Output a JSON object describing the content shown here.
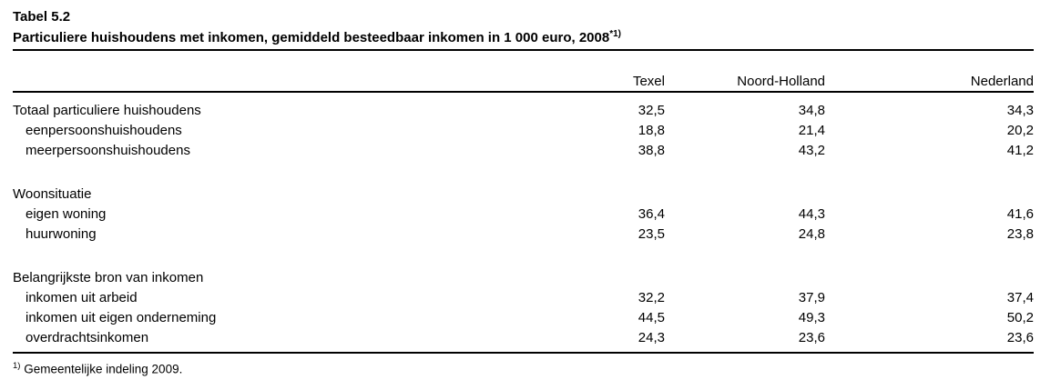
{
  "document": {
    "table_number": "Tabel 5.2",
    "title": "Particuliere huishoudens met inkomen, gemiddeld besteedbaar inkomen in 1 000 euro, 2008",
    "title_superscript": "*1)",
    "footnote_marker": "1)",
    "footnote_text": "Gemeentelijke indeling 2009."
  },
  "table": {
    "columns": [
      "Texel",
      "Noord-Holland",
      "Nederland"
    ],
    "rows": [
      {
        "type": "data",
        "label": "Totaal particuliere huishoudens",
        "indent": false,
        "values": [
          "32,5",
          "34,8",
          "34,3"
        ]
      },
      {
        "type": "data",
        "label": "eenpersoonshuishoudens",
        "indent": true,
        "values": [
          "18,8",
          "21,4",
          "20,2"
        ]
      },
      {
        "type": "data",
        "label": "meerpersoonshuishoudens",
        "indent": true,
        "values": [
          "38,8",
          "43,2",
          "41,2"
        ]
      },
      {
        "type": "spacer"
      },
      {
        "type": "section",
        "label": "Woonsituatie",
        "indent": false
      },
      {
        "type": "data",
        "label": "eigen woning",
        "indent": true,
        "values": [
          "36,4",
          "44,3",
          "41,6"
        ]
      },
      {
        "type": "data",
        "label": "huurwoning",
        "indent": true,
        "values": [
          "23,5",
          "24,8",
          "23,8"
        ]
      },
      {
        "type": "spacer"
      },
      {
        "type": "section",
        "label": "Belangrijkste bron van inkomen",
        "indent": false
      },
      {
        "type": "data",
        "label": "inkomen uit arbeid",
        "indent": true,
        "values": [
          "32,2",
          "37,9",
          "37,4"
        ]
      },
      {
        "type": "data",
        "label": "inkomen uit eigen onderneming",
        "indent": true,
        "values": [
          "44,5",
          "49,3",
          "50,2"
        ]
      },
      {
        "type": "data",
        "label": "overdrachtsinkomen",
        "indent": true,
        "values": [
          "24,3",
          "23,6",
          "23,6"
        ]
      }
    ]
  },
  "colors": {
    "text": "#000000",
    "background": "#ffffff",
    "rule": "#000000"
  }
}
